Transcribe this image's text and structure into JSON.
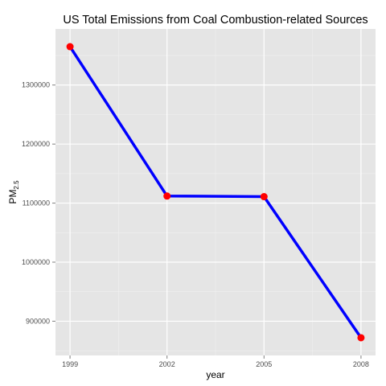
{
  "chart_data": {
    "type": "line",
    "title": "US Total Emissions from Coal Combustion-related Sources",
    "xlabel": "year",
    "ylabel_base": "PM",
    "ylabel_sub": "2.5",
    "x": [
      1999,
      2002,
      2005,
      2008
    ],
    "series": [
      {
        "values": [
          1365000,
          1112000,
          1111000,
          872000
        ]
      }
    ],
    "xticks": [
      1999,
      2002,
      2005,
      2008
    ],
    "yticks": [
      900000,
      1000000,
      1100000,
      1200000,
      1300000
    ],
    "xlim": [
      1998.55,
      2008.45
    ],
    "ylim": [
      842000,
      1395000
    ],
    "grid": true,
    "line_color": "#0000ff",
    "point_color": "#ff0000",
    "panel_background": "#e5e5e5",
    "grid_color": "#ffffff"
  }
}
